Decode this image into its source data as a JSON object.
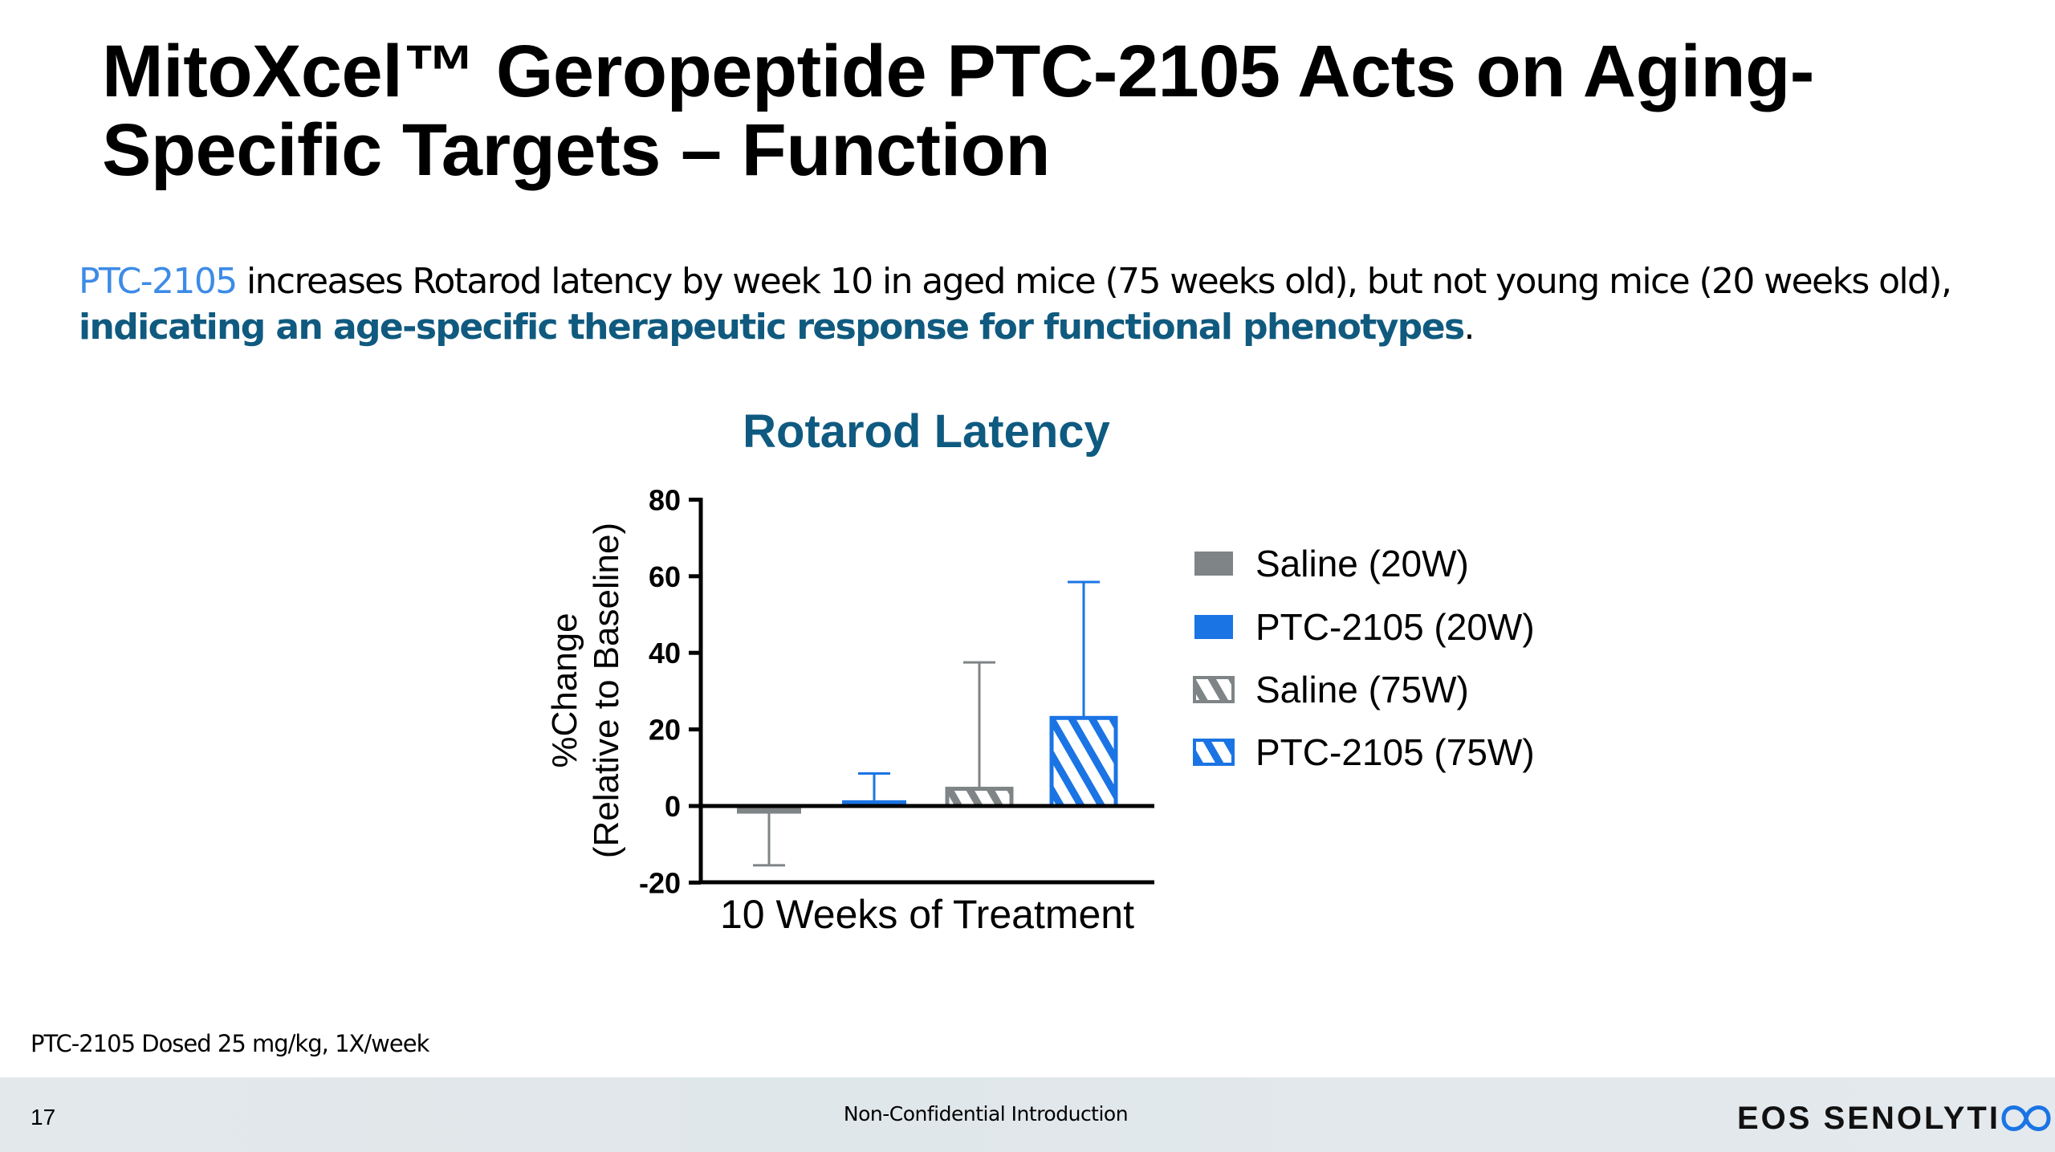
{
  "slide": {
    "title": "MitoXcel™ Geropeptide PTC-2105 Acts on Aging-Specific Targets – Function",
    "body_highlight": "PTC-2105",
    "body_main": " increases Rotarod latency by week 10 in aged mice (75 weeks old), but not young mice (20 weeks old), ",
    "body_emphasis": "indicating an age-specific therapeutic response for functional phenotypes",
    "body_end": ".",
    "footnote": "PTC-2105 Dosed 25 mg/kg, 1X/week",
    "page_number": "17",
    "confidentiality": "Non-Confidential Introduction",
    "logo_text": "EOS SENOLYTIX"
  },
  "colors": {
    "gray": "#7f8486",
    "blue": "#1b74e4",
    "title_teal": "#0f5a80"
  },
  "chart_data": {
    "type": "bar",
    "title": "Rotarod Latency",
    "xlabel": "10 Weeks of Treatment",
    "ylabel_line1": "%Change",
    "ylabel_line2": "(Relative to Baseline)",
    "ylim": [
      -20,
      80
    ],
    "yticks": [
      "-20",
      "0",
      "20",
      "40",
      "60",
      "80"
    ],
    "legend_position": "right",
    "series": [
      {
        "name": "Saline (20W)",
        "value": -2,
        "error_end": -15.5,
        "color": "#7f8486",
        "hatched": false
      },
      {
        "name": "PTC-2105 (20W)",
        "value": 1.5,
        "error_end": 8.5,
        "color": "#1b74e4",
        "hatched": false
      },
      {
        "name": "Saline (75W)",
        "value": 4.5,
        "error_end": 37.5,
        "color": "#7f8486",
        "hatched": true
      },
      {
        "name": "PTC-2105 (75W)",
        "value": 23,
        "error_end": 58.5,
        "color": "#1b74e4",
        "hatched": true
      }
    ]
  }
}
